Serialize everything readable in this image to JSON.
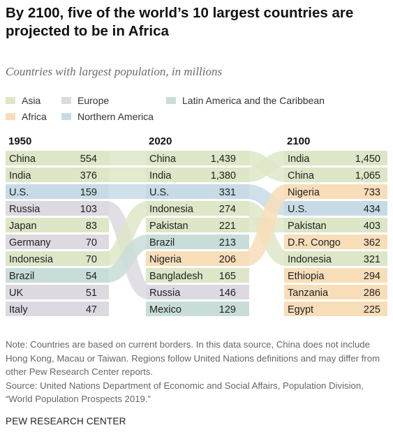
{
  "title": "By 2100, five of the world’s 10 largest countries are projected to be in Africa",
  "subtitle": "Countries with largest population, in millions",
  "legend": [
    {
      "key": "asia",
      "label": "Asia",
      "color": "#dde6c7"
    },
    {
      "key": "europe",
      "label": "Europe",
      "color": "#dcd9e0"
    },
    {
      "key": "latam",
      "label": "Latin America and the Caribbean",
      "color": "#c9ddd8"
    },
    {
      "key": "africa",
      "label": "Africa",
      "color": "#f8ddb9"
    },
    {
      "key": "namerica",
      "label": "Northern America",
      "color": "#c7dbe6"
    }
  ],
  "chart_data": {
    "type": "table",
    "units": "millions",
    "columns": [
      {
        "year": "1950",
        "rows": [
          {
            "country": "China",
            "value": "554",
            "region": "asia"
          },
          {
            "country": "India",
            "value": "376",
            "region": "asia"
          },
          {
            "country": "U.S.",
            "value": "159",
            "region": "namerica"
          },
          {
            "country": "Russia",
            "value": "103",
            "region": "europe"
          },
          {
            "country": "Japan",
            "value": "83",
            "region": "asia"
          },
          {
            "country": "Germany",
            "value": "70",
            "region": "europe"
          },
          {
            "country": "Indonesia",
            "value": "70",
            "region": "asia"
          },
          {
            "country": "Brazil",
            "value": "54",
            "region": "latam"
          },
          {
            "country": "UK",
            "value": "51",
            "region": "europe"
          },
          {
            "country": "Italy",
            "value": "47",
            "region": "europe"
          }
        ]
      },
      {
        "year": "2020",
        "rows": [
          {
            "country": "China",
            "value": "1,439",
            "region": "asia"
          },
          {
            "country": "India",
            "value": "1,380",
            "region": "asia"
          },
          {
            "country": "U.S.",
            "value": "331",
            "region": "namerica"
          },
          {
            "country": "Indonesia",
            "value": "274",
            "region": "asia"
          },
          {
            "country": "Pakistan",
            "value": "221",
            "region": "asia"
          },
          {
            "country": "Brazil",
            "value": "213",
            "region": "latam"
          },
          {
            "country": "Nigeria",
            "value": "206",
            "region": "africa"
          },
          {
            "country": "Bangladesh",
            "value": "165",
            "region": "asia"
          },
          {
            "country": "Russia",
            "value": "146",
            "region": "europe"
          },
          {
            "country": "Mexico",
            "value": "129",
            "region": "latam"
          }
        ]
      },
      {
        "year": "2100",
        "rows": [
          {
            "country": "India",
            "value": "1,450",
            "region": "asia"
          },
          {
            "country": "China",
            "value": "1,065",
            "region": "asia"
          },
          {
            "country": "Nigeria",
            "value": "733",
            "region": "africa"
          },
          {
            "country": "U.S.",
            "value": "434",
            "region": "namerica"
          },
          {
            "country": "Pakistan",
            "value": "403",
            "region": "asia"
          },
          {
            "country": "D.R. Congo",
            "value": "362",
            "region": "africa"
          },
          {
            "country": "Indonesia",
            "value": "321",
            "region": "asia"
          },
          {
            "country": "Ethiopia",
            "value": "294",
            "region": "africa"
          },
          {
            "country": "Tanzania",
            "value": "286",
            "region": "africa"
          },
          {
            "country": "Egypt",
            "value": "225",
            "region": "africa"
          }
        ]
      }
    ]
  },
  "note": "Note: Countries are based on current borders. In this data source, China does not include Hong Kong, Macau or Taiwan. Regions follow United Nations definitions and may differ from other Pew Research Center reports.",
  "source": "Source: United Nations Department of Economic and Social Affairs, Population Division, “World Population Prospects 2019.”",
  "footer": "PEW RESEARCH CENTER"
}
